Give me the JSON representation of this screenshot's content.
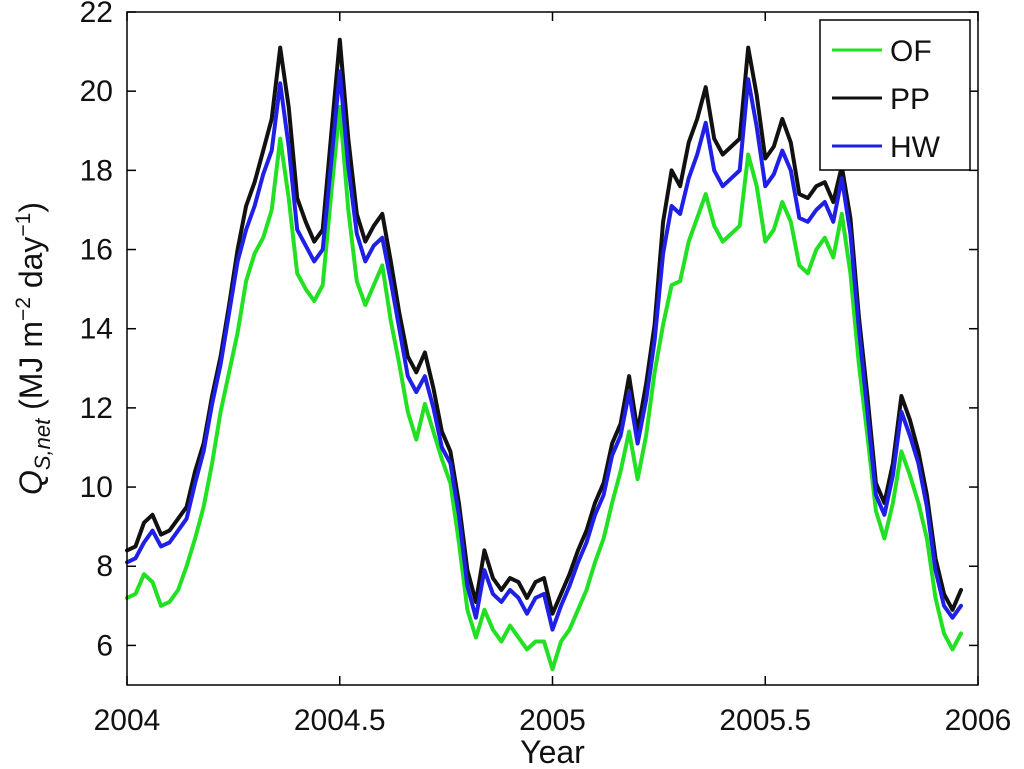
{
  "chart_data": {
    "type": "line",
    "title": "",
    "xlabel": "Year",
    "ylabel": {
      "symbol": "Q",
      "subscript": "S,net",
      "units_prefix": " (MJ m",
      "exp1": "−2",
      "units_mid": " day",
      "exp2": "−1",
      "units_suffix": ")"
    },
    "xlim": [
      2004,
      2006
    ],
    "ylim": [
      5,
      22
    ],
    "xticks": [
      2004,
      2004.5,
      2005,
      2005.5,
      2006
    ],
    "xtick_labels": [
      "2004",
      "2004.5",
      "2005",
      "2005.5",
      "2006"
    ],
    "yticks": [
      6,
      8,
      10,
      12,
      14,
      16,
      18,
      20,
      22
    ],
    "ytick_labels": [
      "6",
      "8",
      "10",
      "12",
      "14",
      "16",
      "18",
      "20",
      "22"
    ],
    "grid": false,
    "legend_position": "top-right",
    "series": [
      {
        "name": "OF",
        "color": "#22e022",
        "x": [
          2004.0,
          2004.02,
          2004.04,
          2004.06,
          2004.08,
          2004.1,
          2004.12,
          2004.14,
          2004.16,
          2004.18,
          2004.2,
          2004.22,
          2004.24,
          2004.26,
          2004.28,
          2004.3,
          2004.32,
          2004.34,
          2004.36,
          2004.38,
          2004.4,
          2004.42,
          2004.44,
          2004.46,
          2004.48,
          2004.5,
          2004.52,
          2004.54,
          2004.56,
          2004.58,
          2004.6,
          2004.62,
          2004.64,
          2004.66,
          2004.68,
          2004.7,
          2004.72,
          2004.74,
          2004.76,
          2004.78,
          2004.8,
          2004.82,
          2004.84,
          2004.86,
          2004.88,
          2004.9,
          2004.92,
          2004.94,
          2004.96,
          2004.98,
          2005.0,
          2005.02,
          2005.04,
          2005.06,
          2005.08,
          2005.1,
          2005.12,
          2005.14,
          2005.16,
          2005.18,
          2005.2,
          2005.22,
          2005.24,
          2005.26,
          2005.28,
          2005.3,
          2005.32,
          2005.34,
          2005.36,
          2005.38,
          2005.4,
          2005.42,
          2005.44,
          2005.46,
          2005.48,
          2005.5,
          2005.52,
          2005.54,
          2005.56,
          2005.58,
          2005.6,
          2005.62,
          2005.64,
          2005.66,
          2005.68,
          2005.7,
          2005.72,
          2005.74,
          2005.76,
          2005.78,
          2005.8,
          2005.82,
          2005.84,
          2005.86,
          2005.88,
          2005.9,
          2005.92,
          2005.94,
          2005.96
        ],
        "y": [
          7.2,
          7.3,
          7.8,
          7.6,
          7.0,
          7.1,
          7.4,
          8.0,
          8.7,
          9.5,
          10.6,
          11.9,
          12.9,
          13.9,
          15.2,
          15.9,
          16.3,
          17.0,
          18.8,
          17.3,
          15.4,
          15.0,
          14.7,
          15.1,
          17.4,
          19.6,
          17.0,
          15.2,
          14.6,
          15.1,
          15.6,
          14.2,
          13.1,
          11.9,
          11.2,
          12.1,
          11.4,
          10.7,
          10.1,
          8.6,
          6.9,
          6.2,
          6.9,
          6.4,
          6.1,
          6.5,
          6.2,
          5.9,
          6.1,
          6.1,
          5.4,
          6.1,
          6.4,
          6.9,
          7.4,
          8.1,
          8.7,
          9.6,
          10.4,
          11.4,
          10.2,
          11.3,
          12.9,
          14.1,
          15.1,
          15.2,
          16.2,
          16.8,
          17.4,
          16.6,
          16.2,
          16.4,
          16.6,
          18.4,
          17.6,
          16.2,
          16.5,
          17.2,
          16.7,
          15.6,
          15.4,
          16.0,
          16.3,
          15.8,
          16.9,
          15.4,
          13.1,
          11.3,
          9.4,
          8.7,
          9.6,
          10.9,
          10.3,
          9.6,
          8.7,
          7.2,
          6.3,
          5.9,
          6.3
        ]
      },
      {
        "name": "PP",
        "color": "#111111",
        "x": [
          2004.0,
          2004.02,
          2004.04,
          2004.06,
          2004.08,
          2004.1,
          2004.12,
          2004.14,
          2004.16,
          2004.18,
          2004.2,
          2004.22,
          2004.24,
          2004.26,
          2004.28,
          2004.3,
          2004.32,
          2004.34,
          2004.36,
          2004.38,
          2004.4,
          2004.42,
          2004.44,
          2004.46,
          2004.48,
          2004.5,
          2004.52,
          2004.54,
          2004.56,
          2004.58,
          2004.6,
          2004.62,
          2004.64,
          2004.66,
          2004.68,
          2004.7,
          2004.72,
          2004.74,
          2004.76,
          2004.78,
          2004.8,
          2004.82,
          2004.84,
          2004.86,
          2004.88,
          2004.9,
          2004.92,
          2004.94,
          2004.96,
          2004.98,
          2005.0,
          2005.02,
          2005.04,
          2005.06,
          2005.08,
          2005.1,
          2005.12,
          2005.14,
          2005.16,
          2005.18,
          2005.2,
          2005.22,
          2005.24,
          2005.26,
          2005.28,
          2005.3,
          2005.32,
          2005.34,
          2005.36,
          2005.38,
          2005.4,
          2005.42,
          2005.44,
          2005.46,
          2005.48,
          2005.5,
          2005.52,
          2005.54,
          2005.56,
          2005.58,
          2005.6,
          2005.62,
          2005.64,
          2005.66,
          2005.68,
          2005.7,
          2005.72,
          2005.74,
          2005.76,
          2005.78,
          2005.8,
          2005.82,
          2005.84,
          2005.86,
          2005.88,
          2005.9,
          2005.92,
          2005.94,
          2005.96
        ],
        "y": [
          8.4,
          8.5,
          9.1,
          9.3,
          8.8,
          8.9,
          9.2,
          9.5,
          10.4,
          11.1,
          12.3,
          13.3,
          14.6,
          16.0,
          17.1,
          17.7,
          18.5,
          19.3,
          21.1,
          19.6,
          17.3,
          16.7,
          16.2,
          16.5,
          18.9,
          21.3,
          18.8,
          16.9,
          16.2,
          16.6,
          16.9,
          15.7,
          14.4,
          13.3,
          12.9,
          13.4,
          12.5,
          11.4,
          10.9,
          9.6,
          7.9,
          7.1,
          8.4,
          7.7,
          7.4,
          7.7,
          7.6,
          7.2,
          7.6,
          7.7,
          6.8,
          7.3,
          7.8,
          8.4,
          8.9,
          9.6,
          10.1,
          11.1,
          11.6,
          12.8,
          11.4,
          12.6,
          14.1,
          16.7,
          18.0,
          17.6,
          18.7,
          19.3,
          20.1,
          18.8,
          18.4,
          18.6,
          18.8,
          21.1,
          19.9,
          18.3,
          18.6,
          19.3,
          18.7,
          17.4,
          17.3,
          17.6,
          17.7,
          17.2,
          18.1,
          16.8,
          14.3,
          12.3,
          10.1,
          9.6,
          10.6,
          12.3,
          11.7,
          10.9,
          9.8,
          8.2,
          7.3,
          6.9,
          7.4
        ]
      },
      {
        "name": "HW",
        "color": "#1f1fe6",
        "x": [
          2004.0,
          2004.02,
          2004.04,
          2004.06,
          2004.08,
          2004.1,
          2004.12,
          2004.14,
          2004.16,
          2004.18,
          2004.2,
          2004.22,
          2004.24,
          2004.26,
          2004.28,
          2004.3,
          2004.32,
          2004.34,
          2004.36,
          2004.38,
          2004.4,
          2004.42,
          2004.44,
          2004.46,
          2004.48,
          2004.5,
          2004.52,
          2004.54,
          2004.56,
          2004.58,
          2004.6,
          2004.62,
          2004.64,
          2004.66,
          2004.68,
          2004.7,
          2004.72,
          2004.74,
          2004.76,
          2004.78,
          2004.8,
          2004.82,
          2004.84,
          2004.86,
          2004.88,
          2004.9,
          2004.92,
          2004.94,
          2004.96,
          2004.98,
          2005.0,
          2005.02,
          2005.04,
          2005.06,
          2005.08,
          2005.1,
          2005.12,
          2005.14,
          2005.16,
          2005.18,
          2005.2,
          2005.22,
          2005.24,
          2005.26,
          2005.28,
          2005.3,
          2005.32,
          2005.34,
          2005.36,
          2005.38,
          2005.4,
          2005.42,
          2005.44,
          2005.46,
          2005.48,
          2005.5,
          2005.52,
          2005.54,
          2005.56,
          2005.58,
          2005.6,
          2005.62,
          2005.64,
          2005.66,
          2005.68,
          2005.7,
          2005.72,
          2005.74,
          2005.76,
          2005.78,
          2005.8,
          2005.82,
          2005.84,
          2005.86,
          2005.88,
          2005.9,
          2005.92,
          2005.94,
          2005.96
        ],
        "y": [
          8.1,
          8.2,
          8.6,
          8.9,
          8.5,
          8.6,
          8.9,
          9.2,
          10.1,
          10.9,
          12.1,
          13.1,
          14.4,
          15.7,
          16.5,
          17.1,
          17.9,
          18.5,
          20.2,
          18.6,
          16.5,
          16.1,
          15.7,
          16.0,
          18.2,
          20.5,
          18.1,
          16.4,
          15.7,
          16.1,
          16.3,
          15.2,
          14.0,
          12.8,
          12.4,
          12.8,
          12.0,
          11.0,
          10.6,
          9.3,
          7.5,
          6.7,
          7.9,
          7.3,
          7.1,
          7.4,
          7.2,
          6.8,
          7.2,
          7.3,
          6.4,
          7.0,
          7.5,
          8.1,
          8.6,
          9.3,
          9.8,
          10.8,
          11.3,
          12.4,
          11.1,
          12.2,
          13.7,
          15.9,
          17.1,
          16.9,
          17.8,
          18.4,
          19.2,
          18.0,
          17.6,
          17.8,
          18.0,
          20.3,
          19.1,
          17.6,
          17.9,
          18.5,
          18.0,
          16.8,
          16.7,
          17.0,
          17.2,
          16.7,
          17.8,
          16.4,
          14.0,
          11.9,
          9.8,
          9.3,
          10.3,
          11.9,
          11.3,
          10.6,
          9.5,
          7.9,
          7.0,
          6.7,
          7.0
        ]
      }
    ]
  }
}
